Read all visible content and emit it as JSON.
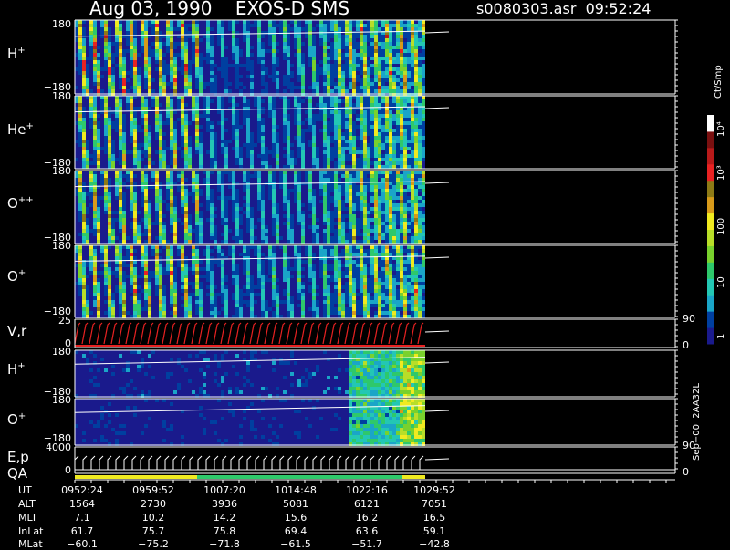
{
  "header": {
    "title": "Aug 03, 1990    EXOS-D SMS",
    "file": "s0080303.asr  09:52:24"
  },
  "colors": {
    "palette": [
      "#1a1a8c",
      "#003fa0",
      "#1aa5c8",
      "#23c7b4",
      "#2ec86b",
      "#79d12d",
      "#b8de28",
      "#f0ea20",
      "#d89a1a",
      "#8d7a16",
      "#e82222",
      "#b81a1a",
      "#7a1010",
      "#ffffff"
    ]
  },
  "chart_data": {
    "type": "heatmap",
    "title": "Aug 03, 1990    EXOS-D SMS",
    "panels": [
      {
        "name": "H+",
        "label": "H",
        "sup": "+",
        "ymax": "180",
        "ymin": "−180"
      },
      {
        "name": "He+",
        "label": "He",
        "sup": "+",
        "ymax": "180",
        "ymin": "−180"
      },
      {
        "name": "O++",
        "label": "O",
        "sup": "++",
        "ymax": "180",
        "ymin": "−180"
      },
      {
        "name": "O+",
        "label": "O",
        "sup": "+",
        "ymax": "180",
        "ymin": "−180"
      },
      {
        "name": "V,r",
        "label": "V,r",
        "sup": "",
        "ymax": "25",
        "ymin": "0",
        "rmax": "90",
        "rmin": "0"
      },
      {
        "name": "H+",
        "label": "H",
        "sup": "+",
        "ymax": "180",
        "ymin": "−180"
      },
      {
        "name": "O+",
        "label": "O",
        "sup": "+",
        "ymax": "180",
        "ymin": "−180"
      },
      {
        "name": "E,p",
        "label": "E,p",
        "sup": "",
        "ymax": "4000",
        "ymin": "0",
        "rmax": "90",
        "rmin": "0"
      }
    ],
    "qa_label": "QA",
    "colorbar": {
      "unit": "Ct/Smp",
      "labels": [
        "10⁴",
        "10³",
        "100",
        "10",
        "1"
      ]
    },
    "xaxis": {
      "rows": [
        {
          "name": "UT",
          "values": [
            "0952:24",
            "0959:52",
            "1007:20",
            "1014:48",
            "1022:16",
            "1029:52"
          ]
        },
        {
          "name": "ALT",
          "values": [
            "1564",
            "2730",
            "3936",
            "5081",
            "6121",
            "7051"
          ]
        },
        {
          "name": "MLT",
          "values": [
            "7.1",
            "10.2",
            "14.2",
            "15.6",
            "16.2",
            "16.5"
          ]
        },
        {
          "name": "InLat",
          "values": [
            "61.7",
            "75.7",
            "75.8",
            "69.4",
            "63.6",
            "59.1"
          ]
        },
        {
          "name": "MLat",
          "values": [
            "−60.1",
            "−75.2",
            "−71.8",
            "−61.5",
            "−51.7",
            "−42.8"
          ]
        }
      ]
    }
  },
  "footer": "Sep−00  2AA32L"
}
